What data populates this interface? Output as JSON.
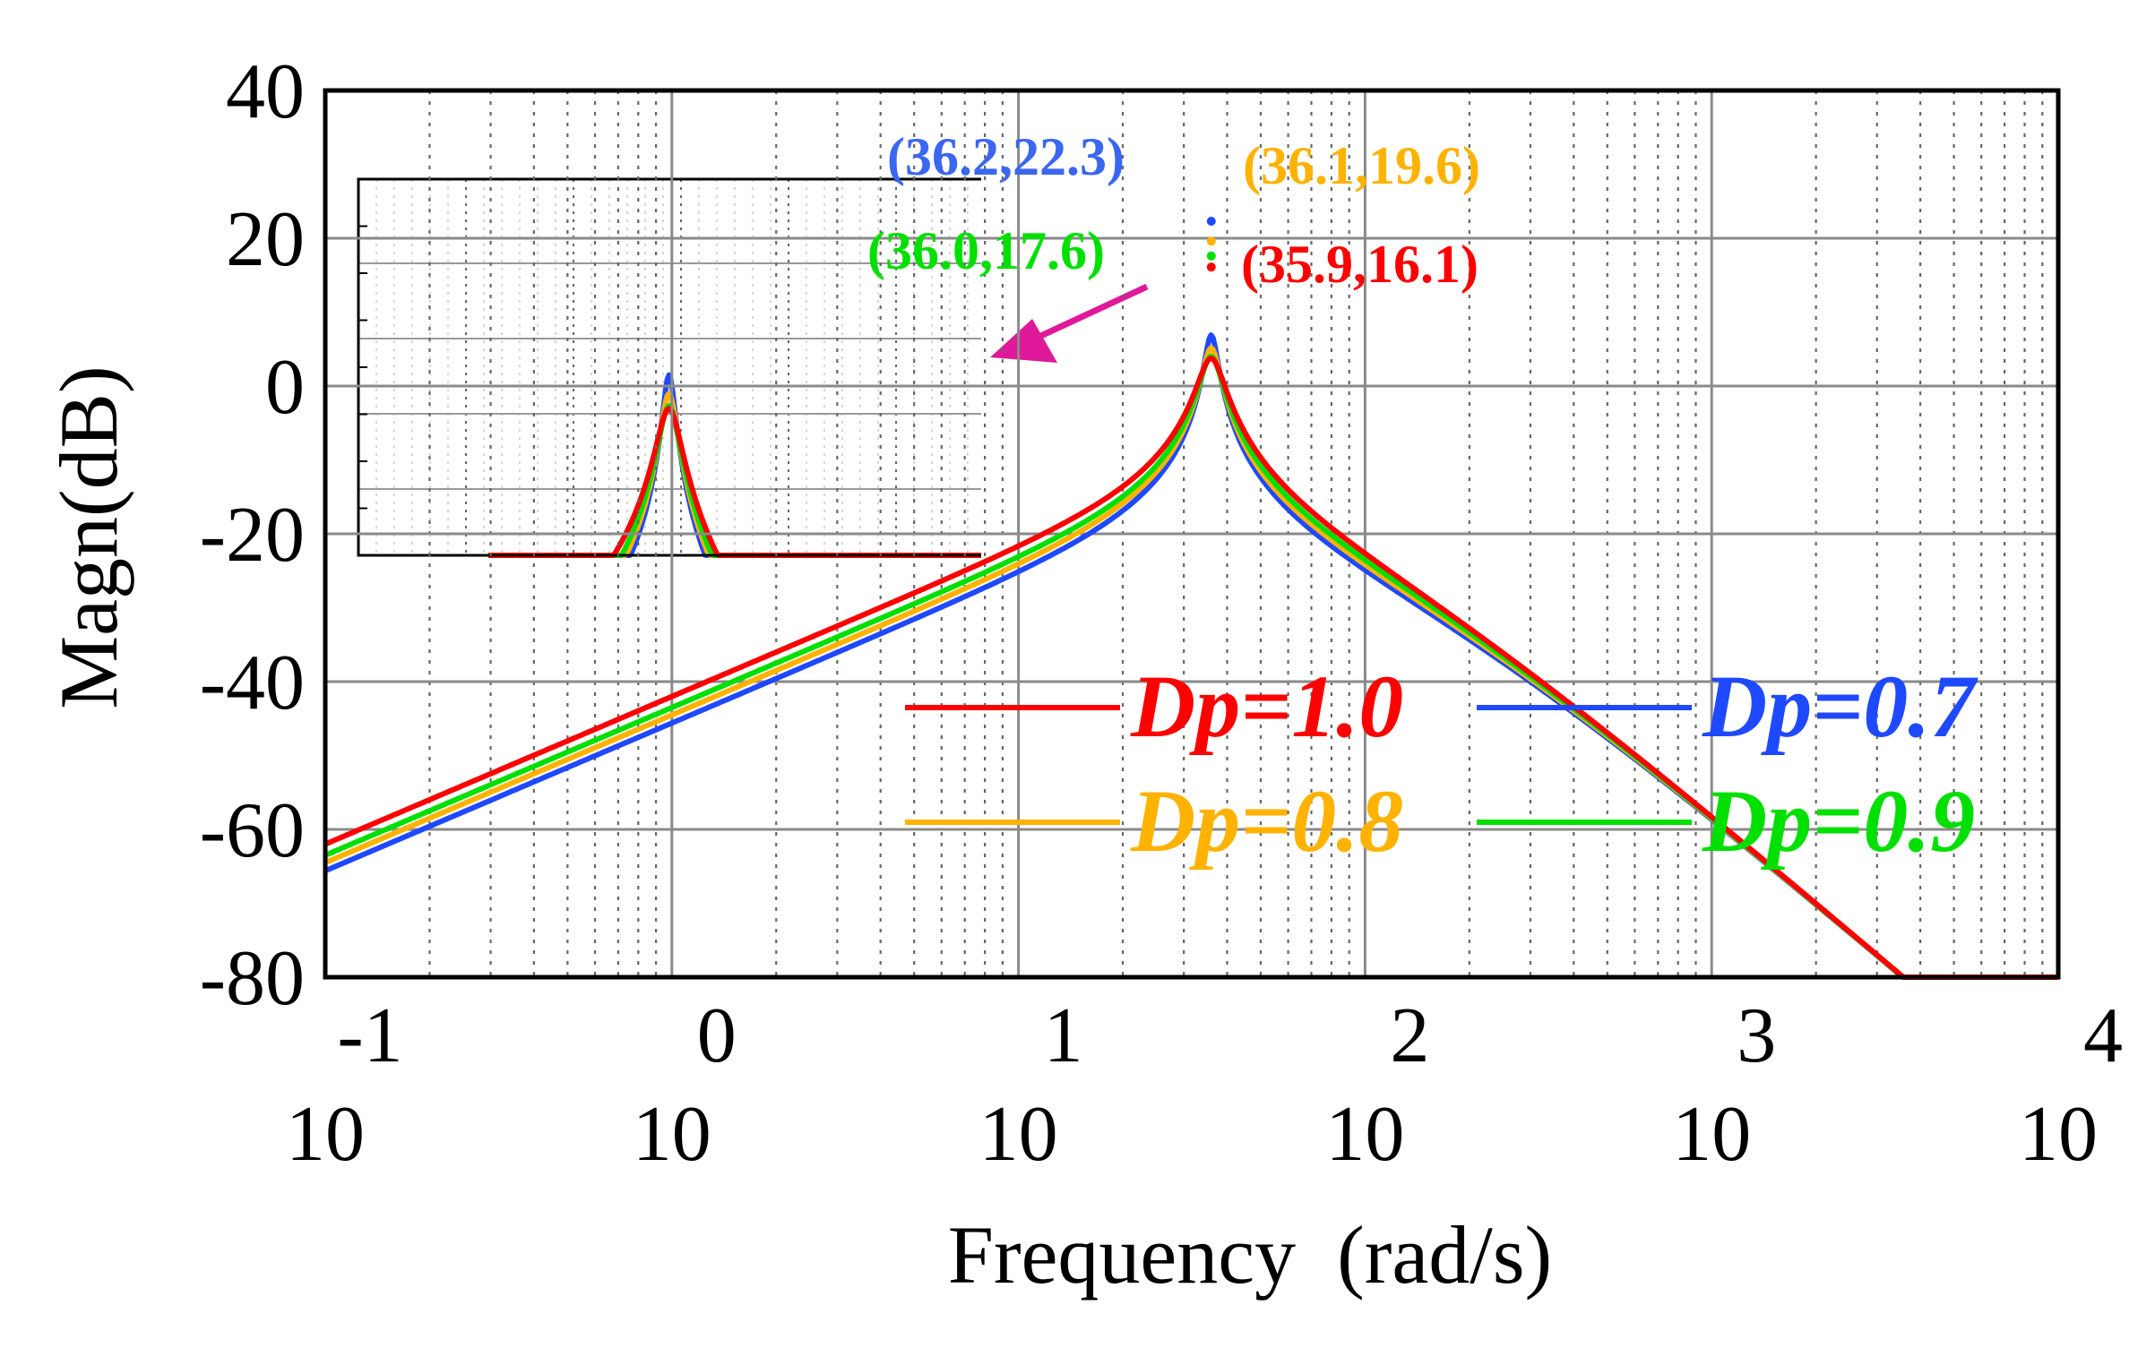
{
  "chart_data": {
    "type": "line",
    "title": "",
    "xlabel": "Frequency  (rad/s)",
    "ylabel": "Magn(dB)",
    "xscale": "log",
    "xlim_exponent": [
      -1,
      4
    ],
    "ylim": [
      -80,
      40
    ],
    "x_ticks": [
      {
        "base": "10",
        "exp": "-1"
      },
      {
        "base": "10",
        "exp": "0"
      },
      {
        "base": "10",
        "exp": "1"
      },
      {
        "base": "10",
        "exp": "2"
      },
      {
        "base": "10",
        "exp": "3"
      },
      {
        "base": "10",
        "exp": "4"
      }
    ],
    "y_ticks": [
      "40",
      "20",
      "0",
      "-20",
      "-40",
      "-60",
      "-80"
    ],
    "grid": true,
    "legend_position": "lower-right",
    "resonance_freq": 36.0,
    "series": [
      {
        "name": "Dp=1.0",
        "color": "#ff0000",
        "peak_db": 16.1,
        "low_freq_db": -62.0
      },
      {
        "name": "Dp=0.7",
        "color": "#1f49ff",
        "peak_db": 22.3,
        "low_freq_db": -65.6
      },
      {
        "name": "Dp=0.8",
        "color": "#ffb300",
        "peak_db": 19.6,
        "low_freq_db": -64.5
      },
      {
        "name": "Dp=0.9",
        "color": "#00e000",
        "peak_db": 17.6,
        "low_freq_db": -63.5
      }
    ],
    "annotations": [
      {
        "text": "(36.2,22.3)",
        "color": "#3a66f0"
      },
      {
        "text": "(36.1,19.6)",
        "color": "#ffb300"
      },
      {
        "text": "(36.0,17.6)",
        "color": "#00e000"
      },
      {
        "text": "(35.9,16.1)",
        "color": "#ff0000"
      }
    ],
    "inset": {
      "description": "zoomed view of resonance peak",
      "arrow_color": "#e0199a"
    }
  }
}
